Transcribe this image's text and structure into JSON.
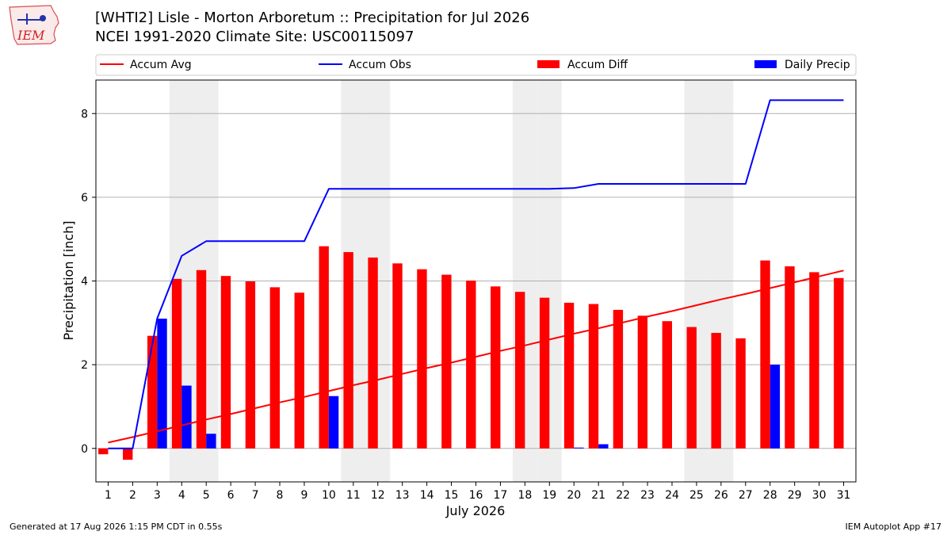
{
  "header": {
    "title": "[WHTI2] Lisle - Morton Arboretum :: Precipitation for Jul 2026",
    "subtitle": "NCEI 1991-2020 Climate Site: USC00115097",
    "logo_text": "IEM"
  },
  "footer": {
    "generated": "Generated at 17 Aug 2026 1:15 PM CDT in 0.55s",
    "app": "IEM Autoplot App #17"
  },
  "colors": {
    "accum_avg": "#ff0000",
    "accum_obs": "#0000ff",
    "accum_diff": "#ff0000",
    "daily_precip": "#0000ff",
    "weekend_shade": "#eeeeee",
    "grid": "#b0b0b0"
  },
  "chart_data": {
    "type": "bar",
    "xlabel": "July 2026",
    "ylabel": "Precipitation [inch]",
    "ylim": [
      -0.8,
      8.8
    ],
    "xlim": [
      0.5,
      31.5
    ],
    "yticks": [
      0,
      2,
      4,
      6,
      8
    ],
    "grid": "horizontal",
    "legend_position": "top",
    "weekend_days": [
      4,
      5,
      11,
      12,
      18,
      19,
      25,
      26
    ],
    "days": [
      1,
      2,
      3,
      4,
      5,
      6,
      7,
      8,
      9,
      10,
      11,
      12,
      13,
      14,
      15,
      16,
      17,
      18,
      19,
      20,
      21,
      22,
      23,
      24,
      25,
      26,
      27,
      28,
      29,
      30,
      31
    ],
    "series": [
      {
        "name": "Accum Avg",
        "kind": "line",
        "values": [
          0.14,
          0.27,
          0.41,
          0.55,
          0.69,
          0.82,
          0.96,
          1.1,
          1.23,
          1.37,
          1.51,
          1.64,
          1.78,
          1.92,
          2.05,
          2.19,
          2.33,
          2.46,
          2.6,
          2.74,
          2.87,
          3.01,
          3.15,
          3.28,
          3.42,
          3.56,
          3.69,
          3.83,
          3.97,
          4.11,
          4.25
        ]
      },
      {
        "name": "Accum Obs",
        "kind": "line",
        "values": [
          0.0,
          0.0,
          3.1,
          4.6,
          4.95,
          4.95,
          4.95,
          4.95,
          4.95,
          6.2,
          6.2,
          6.2,
          6.2,
          6.2,
          6.2,
          6.2,
          6.2,
          6.2,
          6.2,
          6.22,
          6.32,
          6.32,
          6.32,
          6.32,
          6.32,
          6.32,
          6.32,
          8.32,
          8.32,
          8.32,
          8.32
        ]
      },
      {
        "name": "Accum Diff",
        "kind": "bar",
        "values": [
          -0.14,
          -0.27,
          2.69,
          4.05,
          4.26,
          4.12,
          3.99,
          3.85,
          3.72,
          4.83,
          4.69,
          4.56,
          4.42,
          4.28,
          4.15,
          4.01,
          3.87,
          3.74,
          3.6,
          3.48,
          3.45,
          3.31,
          3.17,
          3.04,
          2.9,
          2.76,
          2.63,
          4.49,
          4.35,
          4.21,
          4.07
        ]
      },
      {
        "name": "Daily Precip",
        "kind": "bar",
        "values": [
          0.0,
          0.0,
          3.1,
          1.5,
          0.35,
          0,
          0,
          0,
          0,
          1.25,
          0,
          0,
          0,
          0,
          0,
          0,
          0,
          0,
          0,
          0.02,
          0.1,
          0,
          0,
          0,
          0,
          0,
          0,
          2.0,
          0,
          0,
          0
        ]
      }
    ]
  }
}
